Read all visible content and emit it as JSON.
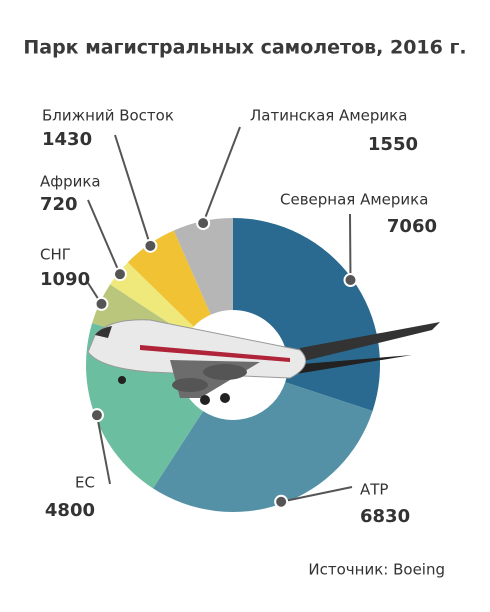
{
  "chart_data": {
    "type": "donut",
    "title": "Парк магистральных самолетов, 2016 г.",
    "categories": [
      "Северная Америка",
      "АТР",
      "ЕС",
      "СНГ",
      "Африка",
      "Ближний Восток",
      "Латинская Америка"
    ],
    "values": [
      7060,
      6830,
      4800,
      1090,
      720,
      1430,
      1550
    ],
    "colors": [
      "#2a6a90",
      "#5591a6",
      "#6cbea0",
      "#b9c67c",
      "#efe97c",
      "#f0c234",
      "#b6b6b6"
    ],
    "source": "Источник: Boeing"
  }
}
